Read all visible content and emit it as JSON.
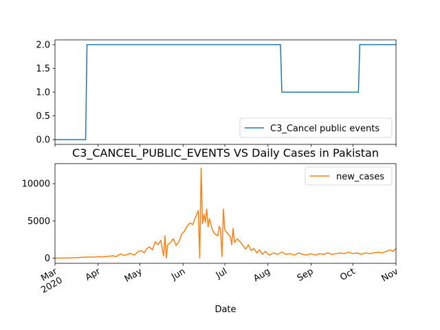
{
  "chart_data": [
    {
      "type": "line",
      "title": "",
      "xlabel": "",
      "ylabel": "",
      "ylim": [
        -0.1,
        2.1
      ],
      "yticks": [
        0.0,
        0.5,
        1.0,
        1.5,
        2.0
      ],
      "ytick_labels": [
        "0.0",
        "0.5",
        "1.0",
        "1.5",
        "2.0"
      ],
      "legend_position": "lower-right",
      "series": [
        {
          "name": "C3_Cancel public events",
          "color": "#1f77b4",
          "step": true,
          "points": [
            [
              "2020-03-01",
              0
            ],
            [
              "2020-03-23",
              0
            ],
            [
              "2020-03-24",
              2
            ],
            [
              "2020-08-10",
              2
            ],
            [
              "2020-08-11",
              1
            ],
            [
              "2020-10-05",
              1
            ],
            [
              "2020-10-06",
              2
            ],
            [
              "2020-11-01",
              2
            ]
          ]
        }
      ]
    },
    {
      "type": "line",
      "title": "C3_CANCEL_PUBLIC_EVENTS VS Daily Cases in Pakistan",
      "xlabel": "Date",
      "ylabel": "",
      "ylim": [
        -700,
        12700
      ],
      "yticks": [
        0,
        5000,
        10000
      ],
      "ytick_labels": [
        "0",
        "5000",
        "10000"
      ],
      "xlim": [
        "2020-03-01",
        "2020-11-01"
      ],
      "xticks": [
        "2020-03-01",
        "2020-04-01",
        "2020-05-01",
        "2020-06-01",
        "2020-07-01",
        "2020-08-01",
        "2020-09-01",
        "2020-10-01",
        "2020-11-01"
      ],
      "xtick_labels": [
        "Mar\n2020",
        "Apr",
        "May",
        "Jun",
        "Jul",
        "Aug",
        "Sep",
        "Oct",
        "Nov"
      ],
      "legend_position": "top-right",
      "series": [
        {
          "name": "new_cases",
          "color": "#ff7f0e",
          "points": [
            [
              "2020-03-01",
              0
            ],
            [
              "2020-03-08",
              10
            ],
            [
              "2020-03-15",
              40
            ],
            [
              "2020-03-22",
              120
            ],
            [
              "2020-03-25",
              160
            ],
            [
              "2020-03-29",
              120
            ],
            [
              "2020-04-01",
              200
            ],
            [
              "2020-04-05",
              150
            ],
            [
              "2020-04-08",
              250
            ],
            [
              "2020-04-12",
              300
            ],
            [
              "2020-04-14",
              200
            ],
            [
              "2020-04-17",
              550
            ],
            [
              "2020-04-20",
              350
            ],
            [
              "2020-04-24",
              650
            ],
            [
              "2020-04-27",
              400
            ],
            [
              "2020-04-30",
              900
            ],
            [
              "2020-05-02",
              1000
            ],
            [
              "2020-05-04",
              700
            ],
            [
              "2020-05-06",
              1300
            ],
            [
              "2020-05-08",
              1500
            ],
            [
              "2020-05-10",
              1100
            ],
            [
              "2020-05-12",
              2200
            ],
            [
              "2020-05-14",
              1800
            ],
            [
              "2020-05-16",
              2400
            ],
            [
              "2020-05-18",
              300
            ],
            [
              "2020-05-19",
              3000
            ],
            [
              "2020-05-20",
              0
            ],
            [
              "2020-05-21",
              1800
            ],
            [
              "2020-05-23",
              2100
            ],
            [
              "2020-05-25",
              2600
            ],
            [
              "2020-05-27",
              1700
            ],
            [
              "2020-05-29",
              2200
            ],
            [
              "2020-05-31",
              3200
            ],
            [
              "2020-06-02",
              3600
            ],
            [
              "2020-06-04",
              4300
            ],
            [
              "2020-06-06",
              4700
            ],
            [
              "2020-06-08",
              4500
            ],
            [
              "2020-06-10",
              5500
            ],
            [
              "2020-06-12",
              6400
            ],
            [
              "2020-06-13",
              0
            ],
            [
              "2020-06-14",
              12100
            ],
            [
              "2020-06-15",
              4600
            ],
            [
              "2020-06-16",
              5900
            ],
            [
              "2020-06-17",
              4800
            ],
            [
              "2020-06-18",
              6600
            ],
            [
              "2020-06-19",
              4200
            ],
            [
              "2020-06-20",
              5300
            ],
            [
              "2020-06-22",
              3800
            ],
            [
              "2020-06-24",
              3200
            ],
            [
              "2020-06-26",
              3000
            ],
            [
              "2020-06-27",
              4300
            ],
            [
              "2020-06-28",
              3800
            ],
            [
              "2020-06-29",
              200
            ],
            [
              "2020-06-30",
              6600
            ],
            [
              "2020-07-01",
              3800
            ],
            [
              "2020-07-03",
              3300
            ],
            [
              "2020-07-05",
              2900
            ],
            [
              "2020-07-06",
              1800
            ],
            [
              "2020-07-07",
              4000
            ],
            [
              "2020-07-08",
              2100
            ],
            [
              "2020-07-10",
              2600
            ],
            [
              "2020-07-12",
              2200
            ],
            [
              "2020-07-14",
              1700
            ],
            [
              "2020-07-16",
              1200
            ],
            [
              "2020-07-18",
              1800
            ],
            [
              "2020-07-20",
              1000
            ],
            [
              "2020-07-22",
              1300
            ],
            [
              "2020-07-24",
              700
            ],
            [
              "2020-07-26",
              1100
            ],
            [
              "2020-07-28",
              500
            ],
            [
              "2020-07-30",
              900
            ],
            [
              "2020-08-02",
              400
            ],
            [
              "2020-08-05",
              700
            ],
            [
              "2020-08-08",
              500
            ],
            [
              "2020-08-11",
              800
            ],
            [
              "2020-08-14",
              500
            ],
            [
              "2020-08-17",
              600
            ],
            [
              "2020-08-20",
              400
            ],
            [
              "2020-08-23",
              700
            ],
            [
              "2020-08-26",
              500
            ],
            [
              "2020-08-29",
              400
            ],
            [
              "2020-09-01",
              600
            ],
            [
              "2020-09-04",
              400
            ],
            [
              "2020-09-07",
              600
            ],
            [
              "2020-09-10",
              500
            ],
            [
              "2020-09-13",
              700
            ],
            [
              "2020-09-16",
              500
            ],
            [
              "2020-09-19",
              600
            ],
            [
              "2020-09-22",
              700
            ],
            [
              "2020-09-25",
              600
            ],
            [
              "2020-09-28",
              800
            ],
            [
              "2020-10-01",
              600
            ],
            [
              "2020-10-04",
              700
            ],
            [
              "2020-10-07",
              500
            ],
            [
              "2020-10-10",
              700
            ],
            [
              "2020-10-13",
              600
            ],
            [
              "2020-10-16",
              700
            ],
            [
              "2020-10-19",
              800
            ],
            [
              "2020-10-22",
              700
            ],
            [
              "2020-10-25",
              900
            ],
            [
              "2020-10-28",
              1100
            ],
            [
              "2020-10-30",
              900
            ],
            [
              "2020-11-01",
              1300
            ]
          ]
        }
      ]
    }
  ]
}
